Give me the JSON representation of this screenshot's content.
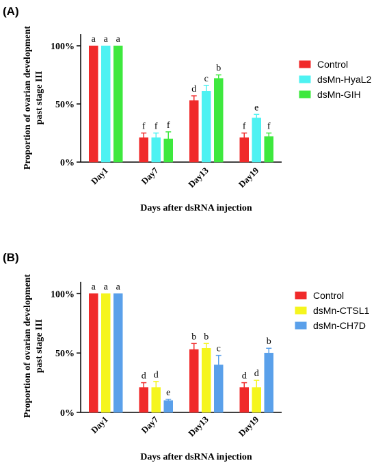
{
  "chart_data": [
    {
      "type": "bar",
      "panel_label": "(A)",
      "ylabel_lines": [
        "Proportion of ovarian development",
        "past stage III"
      ],
      "xlabel": "Days after dsRNA injection",
      "categories": [
        "Day1",
        "Day7",
        "Day13",
        "Day19"
      ],
      "ylim": [
        0,
        1.1
      ],
      "yticks": [
        0,
        0.5,
        1.0
      ],
      "ytick_labels": [
        "0%",
        "50%",
        "100%"
      ],
      "legend_position": "top-right",
      "series": [
        {
          "name": "Control",
          "color": "#f02a2a",
          "values": [
            1.0,
            0.21,
            0.53,
            0.21
          ],
          "errors": [
            0,
            0.04,
            0.04,
            0.04
          ],
          "letters": [
            "a",
            "f",
            "d",
            "f"
          ]
        },
        {
          "name": "dsMn-HyaL2",
          "color": "#4ef2f2",
          "values": [
            1.0,
            0.21,
            0.61,
            0.38
          ],
          "errors": [
            0,
            0.04,
            0.05,
            0.03
          ],
          "letters": [
            "a",
            "f",
            "c",
            "e"
          ]
        },
        {
          "name": "dsMn-GIH",
          "color": "#3ee83e",
          "values": [
            1.0,
            0.2,
            0.72,
            0.22
          ],
          "errors": [
            0,
            0.06,
            0.03,
            0.03
          ],
          "letters": [
            "a",
            "f",
            "b",
            "f"
          ]
        }
      ]
    },
    {
      "type": "bar",
      "panel_label": "(B)",
      "ylabel_lines": [
        "Proportion of ovarian development",
        "past stage III"
      ],
      "xlabel": "Days after dsRNA injection",
      "categories": [
        "Day1",
        "Day7",
        "Day13",
        "Day19"
      ],
      "ylim": [
        0,
        1.1
      ],
      "yticks": [
        0,
        0.5,
        1.0
      ],
      "ytick_labels": [
        "0%",
        "50%",
        "100%"
      ],
      "legend_position": "top-right",
      "series": [
        {
          "name": "Control",
          "color": "#f02a2a",
          "values": [
            1.0,
            0.21,
            0.53,
            0.21
          ],
          "errors": [
            0,
            0.04,
            0.05,
            0.04
          ],
          "letters": [
            "a",
            "d",
            "b",
            "d"
          ]
        },
        {
          "name": "dsMn-CTSL1",
          "color": "#f5f51e",
          "values": [
            1.0,
            0.21,
            0.54,
            0.21
          ],
          "errors": [
            0,
            0.05,
            0.04,
            0.06
          ],
          "letters": [
            "a",
            "d",
            "b",
            "d"
          ]
        },
        {
          "name": "dsMn-CH7D",
          "color": "#5aa0ea",
          "values": [
            1.0,
            0.1,
            0.4,
            0.5
          ],
          "errors": [
            0,
            0.01,
            0.08,
            0.04
          ],
          "letters": [
            "a",
            "e",
            "c",
            "b"
          ]
        }
      ]
    }
  ]
}
